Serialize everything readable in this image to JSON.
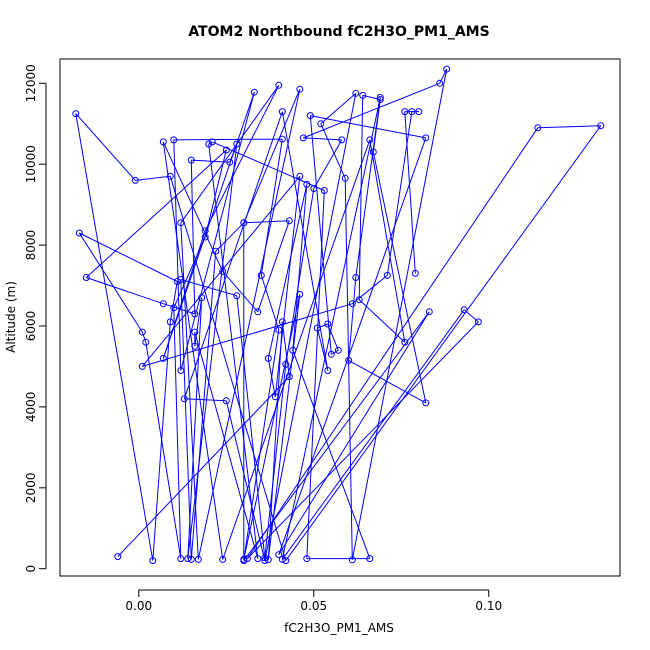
{
  "chart_data": {
    "type": "scatter",
    "title": "ATOM2 Northbound fC2H3O_PM1_AMS",
    "xlabel": "fC2H3O_PM1_AMS",
    "ylabel": "Altitude (m)",
    "xlim": [
      -0.0225,
      0.1375
    ],
    "ylim": [
      -180,
      12600
    ],
    "x_ticks": [
      0.0,
      0.05,
      0.1
    ],
    "x_tick_labels": [
      "0.00",
      "0.05",
      "0.10"
    ],
    "y_ticks": [
      0,
      2000,
      4000,
      6000,
      8000,
      10000,
      12000
    ],
    "y_tick_labels": [
      "0",
      "2000",
      "4000",
      "6000",
      "8000",
      "10000",
      "12000"
    ],
    "grid": false,
    "legend": "none",
    "series_color": "#0000ff",
    "connected": true,
    "points": [
      {
        "x": -0.006,
        "y": 300
      },
      {
        "x": 0.043,
        "y": 4750
      },
      {
        "x": 0.041,
        "y": 6100
      },
      {
        "x": 0.037,
        "y": 220
      },
      {
        "x": 0.046,
        "y": 6780
      },
      {
        "x": 0.03,
        "y": 230
      },
      {
        "x": 0.04,
        "y": 5900
      },
      {
        "x": 0.035,
        "y": 7250
      },
      {
        "x": 0.041,
        "y": 10620
      },
      {
        "x": 0.01,
        "y": 10600
      },
      {
        "x": 0.012,
        "y": 4900
      },
      {
        "x": 0.033,
        "y": 11780
      },
      {
        "x": 0.007,
        "y": 5200
      },
      {
        "x": 0.019,
        "y": 8350
      },
      {
        "x": 0.04,
        "y": 11950
      },
      {
        "x": 0.012,
        "y": 8550
      },
      {
        "x": 0.017,
        "y": 230
      },
      {
        "x": 0.046,
        "y": 11850
      },
      {
        "x": 0.03,
        "y": 8550
      },
      {
        "x": 0.022,
        "y": 7850
      },
      {
        "x": 0.015,
        "y": 230
      },
      {
        "x": 0.012,
        "y": 7150
      },
      {
        "x": 0.028,
        "y": 6750
      },
      {
        "x": 0.036,
        "y": 270
      },
      {
        "x": 0.042,
        "y": 5050
      },
      {
        "x": 0.05,
        "y": 9400
      },
      {
        "x": 0.058,
        "y": 10600
      },
      {
        "x": 0.047,
        "y": 10650
      },
      {
        "x": 0.086,
        "y": 12000
      },
      {
        "x": 0.088,
        "y": 12350
      },
      {
        "x": 0.061,
        "y": 220
      },
      {
        "x": 0.059,
        "y": 9650
      },
      {
        "x": 0.052,
        "y": 11000
      },
      {
        "x": 0.062,
        "y": 11750
      },
      {
        "x": 0.036,
        "y": 200
      },
      {
        "x": 0.025,
        "y": 4150
      },
      {
        "x": 0.013,
        "y": 4200
      },
      {
        "x": 0.041,
        "y": 11300
      },
      {
        "x": 0.054,
        "y": 4900
      },
      {
        "x": 0.051,
        "y": 5950
      },
      {
        "x": 0.054,
        "y": 6050
      },
      {
        "x": 0.057,
        "y": 5400
      },
      {
        "x": 0.055,
        "y": 5300
      },
      {
        "x": 0.049,
        "y": 11200
      },
      {
        "x": 0.082,
        "y": 10650
      },
      {
        "x": 0.04,
        "y": 350
      },
      {
        "x": 0.083,
        "y": 6350
      },
      {
        "x": 0.03,
        "y": 200
      },
      {
        "x": 0.03,
        "y": 8550
      },
      {
        "x": 0.043,
        "y": 8600
      },
      {
        "x": 0.034,
        "y": 6350
      },
      {
        "x": 0.024,
        "y": 7350
      },
      {
        "x": 0.007,
        "y": 10550
      },
      {
        "x": 0.024,
        "y": 230
      },
      {
        "x": 0.066,
        "y": 10600
      },
      {
        "x": 0.076,
        "y": 5600
      },
      {
        "x": 0.063,
        "y": 6650
      },
      {
        "x": 0.064,
        "y": 11700
      },
      {
        "x": 0.069,
        "y": 11600
      },
      {
        "x": 0.067,
        "y": 10300
      },
      {
        "x": 0.082,
        "y": 4100
      },
      {
        "x": 0.06,
        "y": 5150
      },
      {
        "x": 0.062,
        "y": 7200
      },
      {
        "x": 0.069,
        "y": 11650
      },
      {
        "x": 0.041,
        "y": 230
      },
      {
        "x": 0.093,
        "y": 6400
      },
      {
        "x": 0.097,
        "y": 6100
      },
      {
        "x": 0.031,
        "y": 250
      },
      {
        "x": 0.114,
        "y": 10900
      },
      {
        "x": 0.132,
        "y": 10950
      },
      {
        "x": 0.042,
        "y": 200
      },
      {
        "x": 0.009,
        "y": 9700
      },
      {
        "x": -0.001,
        "y": 9600
      },
      {
        "x": -0.018,
        "y": 11250
      },
      {
        "x": 0.004,
        "y": 200
      },
      {
        "x": 0.009,
        "y": 6100
      },
      {
        "x": 0.011,
        "y": 7100
      },
      {
        "x": -0.017,
        "y": 8300
      },
      {
        "x": 0.001,
        "y": 5850
      },
      {
        "x": 0.002,
        "y": 5600
      },
      {
        "x": 0.012,
        "y": 250
      },
      {
        "x": 0.01,
        "y": 6450
      },
      {
        "x": 0.019,
        "y": 8200
      },
      {
        "x": 0.025,
        "y": 10350
      },
      {
        "x": -0.015,
        "y": 7200
      },
      {
        "x": 0.007,
        "y": 6550
      },
      {
        "x": 0.016,
        "y": 6300
      },
      {
        "x": 0.015,
        "y": 10100
      },
      {
        "x": 0.026,
        "y": 10050
      },
      {
        "x": 0.028,
        "y": 10500
      },
      {
        "x": 0.014,
        "y": 250
      },
      {
        "x": 0.018,
        "y": 6700
      },
      {
        "x": 0.016,
        "y": 5500
      },
      {
        "x": 0.016,
        "y": 5850
      },
      {
        "x": 0.034,
        "y": 250
      },
      {
        "x": 0.02,
        "y": 10500
      },
      {
        "x": 0.021,
        "y": 10550
      },
      {
        "x": 0.053,
        "y": 9350
      },
      {
        "x": 0.048,
        "y": 250
      },
      {
        "x": 0.066,
        "y": 250
      },
      {
        "x": 0.044,
        "y": 5400
      },
      {
        "x": 0.048,
        "y": 9500
      },
      {
        "x": 0.037,
        "y": 5200
      },
      {
        "x": 0.039,
        "y": 4250
      },
      {
        "x": 0.046,
        "y": 9700
      },
      {
        "x": 0.001,
        "y": 5000
      },
      {
        "x": 0.061,
        "y": 6550
      },
      {
        "x": 0.071,
        "y": 7250
      },
      {
        "x": 0.078,
        "y": 11300
      },
      {
        "x": 0.08,
        "y": 11300
      },
      {
        "x": 0.076,
        "y": 11300
      },
      {
        "x": 0.079,
        "y": 7300
      }
    ]
  }
}
